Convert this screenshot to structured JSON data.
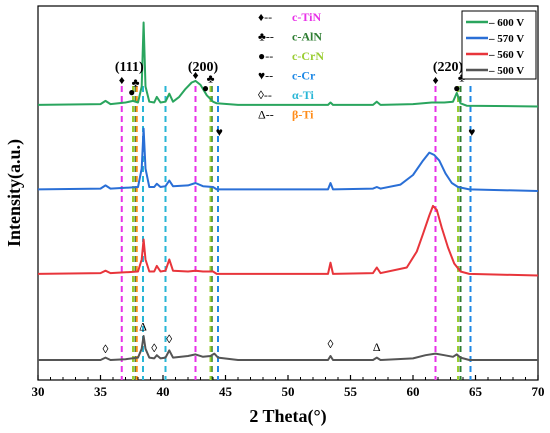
{
  "chart_data": {
    "type": "line",
    "title": "",
    "xlabel": "2 Theta(°)",
    "ylabel": "Intensity(a.u.)",
    "xlim": [
      30,
      70
    ],
    "x_ticks": [
      30,
      35,
      40,
      45,
      50,
      55,
      60,
      65,
      70
    ],
    "grid": false,
    "legend_position": "top-right",
    "series": [
      {
        "name": "600 V",
        "color": "#2aa55e",
        "offset": 3,
        "points": [
          [
            30,
            0.02
          ],
          [
            35.0,
            0.03
          ],
          [
            35.4,
            0.07
          ],
          [
            35.8,
            0.03
          ],
          [
            37.0,
            0.05
          ],
          [
            37.6,
            0.07
          ],
          [
            38.0,
            0.05
          ],
          [
            38.3,
            0.25
          ],
          [
            38.45,
            1.05
          ],
          [
            38.6,
            0.25
          ],
          [
            38.9,
            0.06
          ],
          [
            39.3,
            0.05
          ],
          [
            39.5,
            0.12
          ],
          [
            39.8,
            0.05
          ],
          [
            40.2,
            0.06
          ],
          [
            40.5,
            0.16
          ],
          [
            40.8,
            0.06
          ],
          [
            41.3,
            0.12
          ],
          [
            41.8,
            0.22
          ],
          [
            42.3,
            0.3
          ],
          [
            42.6,
            0.32
          ],
          [
            43.0,
            0.27
          ],
          [
            43.5,
            0.14
          ],
          [
            44.0,
            0.06
          ],
          [
            44.3,
            0.04
          ],
          [
            46.0,
            0.02
          ],
          [
            53.2,
            0.02
          ],
          [
            53.4,
            0.05
          ],
          [
            53.6,
            0.02
          ],
          [
            56.8,
            0.02
          ],
          [
            57.1,
            0.06
          ],
          [
            57.4,
            0.02
          ],
          [
            60.0,
            0.03
          ],
          [
            61.5,
            0.05
          ],
          [
            62.5,
            0.05
          ],
          [
            63.2,
            0.06
          ],
          [
            63.5,
            0.17
          ],
          [
            63.8,
            0.04
          ],
          [
            64.3,
            0.01
          ],
          [
            70,
            0.0
          ]
        ]
      },
      {
        "name": "570 V",
        "color": "#2a6fd6",
        "offset": 2,
        "points": [
          [
            30,
            0.02
          ],
          [
            35.0,
            0.03
          ],
          [
            35.4,
            0.07
          ],
          [
            35.8,
            0.03
          ],
          [
            37.0,
            0.04
          ],
          [
            38.0,
            0.05
          ],
          [
            38.3,
            0.28
          ],
          [
            38.45,
            0.78
          ],
          [
            38.6,
            0.28
          ],
          [
            38.9,
            0.05
          ],
          [
            39.3,
            0.05
          ],
          [
            39.5,
            0.09
          ],
          [
            39.8,
            0.05
          ],
          [
            40.2,
            0.06
          ],
          [
            40.5,
            0.13
          ],
          [
            40.8,
            0.06
          ],
          [
            42.0,
            0.07
          ],
          [
            42.6,
            0.1
          ],
          [
            43.2,
            0.06
          ],
          [
            44.0,
            0.05
          ],
          [
            44.3,
            0.02
          ],
          [
            46,
            0.02
          ],
          [
            53.2,
            0.02
          ],
          [
            53.4,
            0.1
          ],
          [
            53.6,
            0.02
          ],
          [
            56.8,
            0.03
          ],
          [
            57.1,
            0.05
          ],
          [
            57.4,
            0.03
          ],
          [
            59.0,
            0.08
          ],
          [
            60.0,
            0.2
          ],
          [
            60.8,
            0.38
          ],
          [
            61.3,
            0.48
          ],
          [
            61.7,
            0.45
          ],
          [
            62.1,
            0.38
          ],
          [
            62.6,
            0.22
          ],
          [
            63.1,
            0.1
          ],
          [
            63.6,
            0.05
          ],
          [
            64.5,
            0.02
          ],
          [
            70,
            0.0
          ]
        ]
      },
      {
        "name": "560 V",
        "color": "#e8353b",
        "offset": 1,
        "points": [
          [
            30,
            0.02
          ],
          [
            35.0,
            0.03
          ],
          [
            35.4,
            0.06
          ],
          [
            35.8,
            0.03
          ],
          [
            37.0,
            0.04
          ],
          [
            38.0,
            0.05
          ],
          [
            38.3,
            0.2
          ],
          [
            38.45,
            0.45
          ],
          [
            38.6,
            0.2
          ],
          [
            38.9,
            0.05
          ],
          [
            39.3,
            0.05
          ],
          [
            39.5,
            0.12
          ],
          [
            39.8,
            0.05
          ],
          [
            40.2,
            0.06
          ],
          [
            40.5,
            0.2
          ],
          [
            40.8,
            0.06
          ],
          [
            42.0,
            0.05
          ],
          [
            42.6,
            0.06
          ],
          [
            43.2,
            0.05
          ],
          [
            44.0,
            0.05
          ],
          [
            44.3,
            0.02
          ],
          [
            46,
            0.02
          ],
          [
            53.2,
            0.02
          ],
          [
            53.4,
            0.16
          ],
          [
            53.6,
            0.02
          ],
          [
            56.8,
            0.03
          ],
          [
            57.1,
            0.1
          ],
          [
            57.4,
            0.03
          ],
          [
            59.5,
            0.1
          ],
          [
            60.3,
            0.3
          ],
          [
            60.8,
            0.52
          ],
          [
            61.3,
            0.75
          ],
          [
            61.6,
            0.87
          ],
          [
            61.9,
            0.82
          ],
          [
            62.3,
            0.6
          ],
          [
            62.8,
            0.35
          ],
          [
            63.3,
            0.15
          ],
          [
            63.8,
            0.05
          ],
          [
            64.5,
            0.02
          ],
          [
            70,
            0.0
          ]
        ]
      },
      {
        "name": "500 V",
        "color": "#555555",
        "offset": 0,
        "points": [
          [
            30,
            0.0
          ],
          [
            35.0,
            0.0
          ],
          [
            35.4,
            0.03
          ],
          [
            35.8,
            0.0
          ],
          [
            37.0,
            0.01
          ],
          [
            38.0,
            0.03
          ],
          [
            38.3,
            0.14
          ],
          [
            38.45,
            0.3
          ],
          [
            38.6,
            0.14
          ],
          [
            38.9,
            0.03
          ],
          [
            39.3,
            0.02
          ],
          [
            39.5,
            0.06
          ],
          [
            39.8,
            0.02
          ],
          [
            40.2,
            0.03
          ],
          [
            40.5,
            0.12
          ],
          [
            40.8,
            0.03
          ],
          [
            42.0,
            0.05
          ],
          [
            42.6,
            0.07
          ],
          [
            43.2,
            0.04
          ],
          [
            43.8,
            0.05
          ],
          [
            44.1,
            0.08
          ],
          [
            44.4,
            0.03
          ],
          [
            46,
            0.0
          ],
          [
            53.2,
            0.0
          ],
          [
            53.4,
            0.05
          ],
          [
            53.6,
            0.0
          ],
          [
            56.8,
            0.0
          ],
          [
            57.1,
            0.03
          ],
          [
            57.4,
            0.0
          ],
          [
            60.0,
            0.02
          ],
          [
            61.0,
            0.06
          ],
          [
            61.8,
            0.08
          ],
          [
            62.5,
            0.06
          ],
          [
            63.2,
            0.04
          ],
          [
            63.5,
            0.07
          ],
          [
            63.8,
            0.03
          ],
          [
            64.5,
            0.0
          ],
          [
            70,
            0.0
          ]
        ]
      }
    ],
    "reference_lines": [
      {
        "phase": "c-TiN",
        "color": "#e832e8",
        "positions": [
          36.7,
          42.6,
          61.8
        ]
      },
      {
        "phase": "c-AlN",
        "color": "#2e7d32",
        "positions": [
          37.8,
          43.9,
          63.8
        ]
      },
      {
        "phase": "c-CrN",
        "color": "#9acd32",
        "positions": [
          37.6,
          43.8,
          63.6
        ]
      },
      {
        "phase": "c-Cr",
        "color": "#1e88e5",
        "positions": [
          44.4,
          64.6
        ]
      },
      {
        "phase": "α-Ti",
        "color": "#29b6d6",
        "positions": [
          38.4,
          40.2
        ]
      },
      {
        "phase": "β-Ti",
        "color": "#ff8c1a",
        "positions": [
          37.9
        ]
      }
    ],
    "annotations": [
      {
        "text": "(111)",
        "x": 37.3
      },
      {
        "text": "(200)",
        "x": 43.2
      },
      {
        "text": "(220)",
        "x": 62.8
      }
    ],
    "markers": [
      {
        "symbol": "♦",
        "x": 36.7,
        "level": 3.4
      },
      {
        "symbol": "●",
        "x": 37.5,
        "level": 3.25
      },
      {
        "symbol": "♣",
        "x": 37.8,
        "level": 3.37
      },
      {
        "symbol": "♦",
        "x": 42.6,
        "level": 3.46
      },
      {
        "symbol": "●",
        "x": 43.4,
        "level": 3.3
      },
      {
        "symbol": "♣",
        "x": 43.8,
        "level": 3.42
      },
      {
        "symbol": "♥",
        "x": 44.5,
        "level": 2.75
      },
      {
        "symbol": "♦",
        "x": 61.8,
        "level": 3.4
      },
      {
        "symbol": "●",
        "x": 63.5,
        "level": 3.3
      },
      {
        "symbol": "♣",
        "x": 63.9,
        "level": 3.43
      },
      {
        "symbol": "♥",
        "x": 64.7,
        "level": 2.75
      },
      {
        "symbol": "◊",
        "x": 35.4,
        "level": 0.04
      },
      {
        "symbol": "Δ",
        "x": 38.4,
        "level": 0.32
      },
      {
        "symbol": "◊",
        "x": 39.3,
        "level": 0.05
      },
      {
        "symbol": "◊",
        "x": 40.5,
        "level": 0.16
      },
      {
        "symbol": "◊",
        "x": 53.4,
        "level": 0.1
      },
      {
        "symbol": "Δ",
        "x": 57.1,
        "level": 0.06
      }
    ],
    "phase_legend": [
      {
        "symbol": "♦",
        "label": "c-TiN",
        "color": "#e832e8"
      },
      {
        "symbol": "♣",
        "label": "c-AlN",
        "color": "#2e7d32"
      },
      {
        "symbol": "●",
        "label": "c-CrN",
        "color": "#9acd32"
      },
      {
        "symbol": "♥",
        "label": "c-Cr",
        "color": "#1e88e5"
      },
      {
        "symbol": "◊",
        "label": "α-Ti",
        "color": "#29b6d6"
      },
      {
        "symbol": "Δ",
        "label": "β-Ti",
        "color": "#ff8c1a"
      }
    ],
    "series_legend": [
      "– 600 V",
      "– 570 V",
      "– 560 V",
      "– 500 V"
    ]
  }
}
